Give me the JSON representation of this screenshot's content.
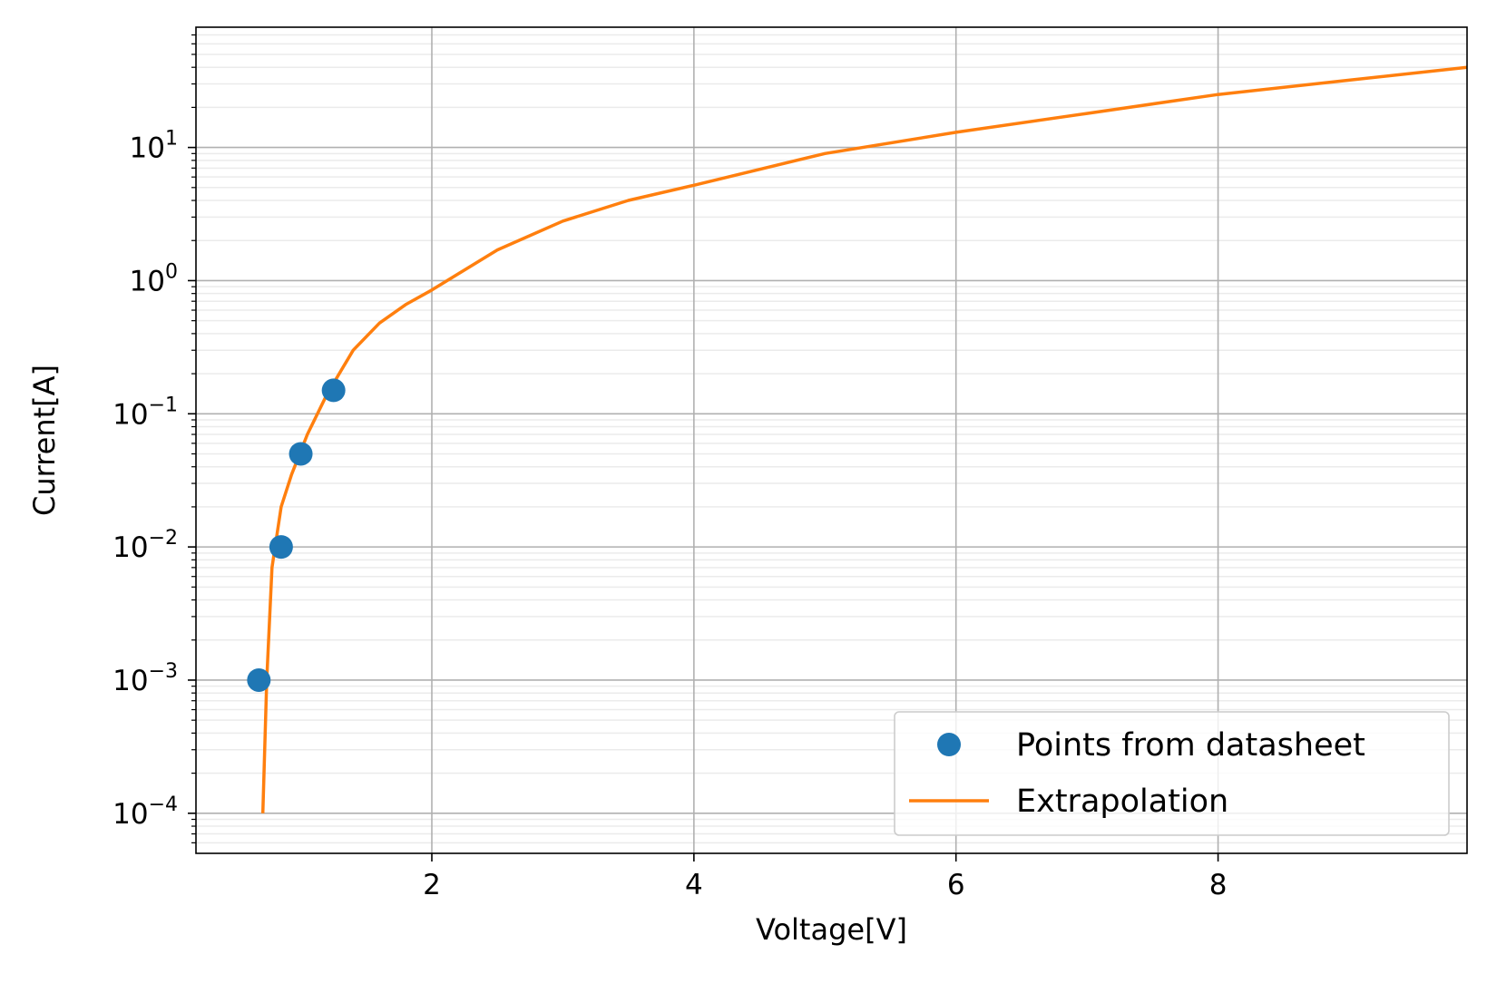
{
  "chart_data": {
    "type": "line",
    "title": "",
    "xlabel": "Voltage[V]",
    "ylabel": "Current[A]",
    "xscale": "linear",
    "yscale": "log",
    "xlim": [
      0.2,
      9.9
    ],
    "ylim": [
      5e-05,
      80
    ],
    "grid": true,
    "minor_grid": true,
    "legend_position": "lower right",
    "xticks": [
      {
        "value": 2,
        "label": "2"
      },
      {
        "value": 4,
        "label": "4"
      },
      {
        "value": 6,
        "label": "6"
      },
      {
        "value": 8,
        "label": "8"
      }
    ],
    "yticks": [
      {
        "value": 0.0001,
        "base": "10",
        "exp": "−4"
      },
      {
        "value": 0.001,
        "base": "10",
        "exp": "−3"
      },
      {
        "value": 0.01,
        "base": "10",
        "exp": "−2"
      },
      {
        "value": 0.1,
        "base": "10",
        "exp": "−1"
      },
      {
        "value": 1,
        "base": "10",
        "exp": "0"
      },
      {
        "value": 10,
        "base": "10",
        "exp": "1"
      }
    ],
    "series": [
      {
        "name": "Points from datasheet",
        "kind": "scatter",
        "color": "#1f77b4",
        "x": [
          0.68,
          0.85,
          1.0,
          1.25
        ],
        "y": [
          0.001,
          0.01,
          0.05,
          0.15
        ]
      },
      {
        "name": "Extrapolation",
        "kind": "line",
        "color": "#ff7f0e",
        "x": [
          0.71,
          0.74,
          0.78,
          0.85,
          0.93,
          1.05,
          1.2,
          1.4,
          1.6,
          1.8,
          2.0,
          2.5,
          3.0,
          3.5,
          4.0,
          5.0,
          6.0,
          7.0,
          8.0,
          9.0,
          9.9
        ],
        "y": [
          0.0001,
          0.001,
          0.007,
          0.02,
          0.035,
          0.07,
          0.14,
          0.3,
          0.48,
          0.66,
          0.85,
          1.7,
          2.8,
          4.0,
          5.2,
          9.0,
          13.0,
          18.0,
          25.0,
          32.0,
          40.0
        ]
      }
    ]
  }
}
